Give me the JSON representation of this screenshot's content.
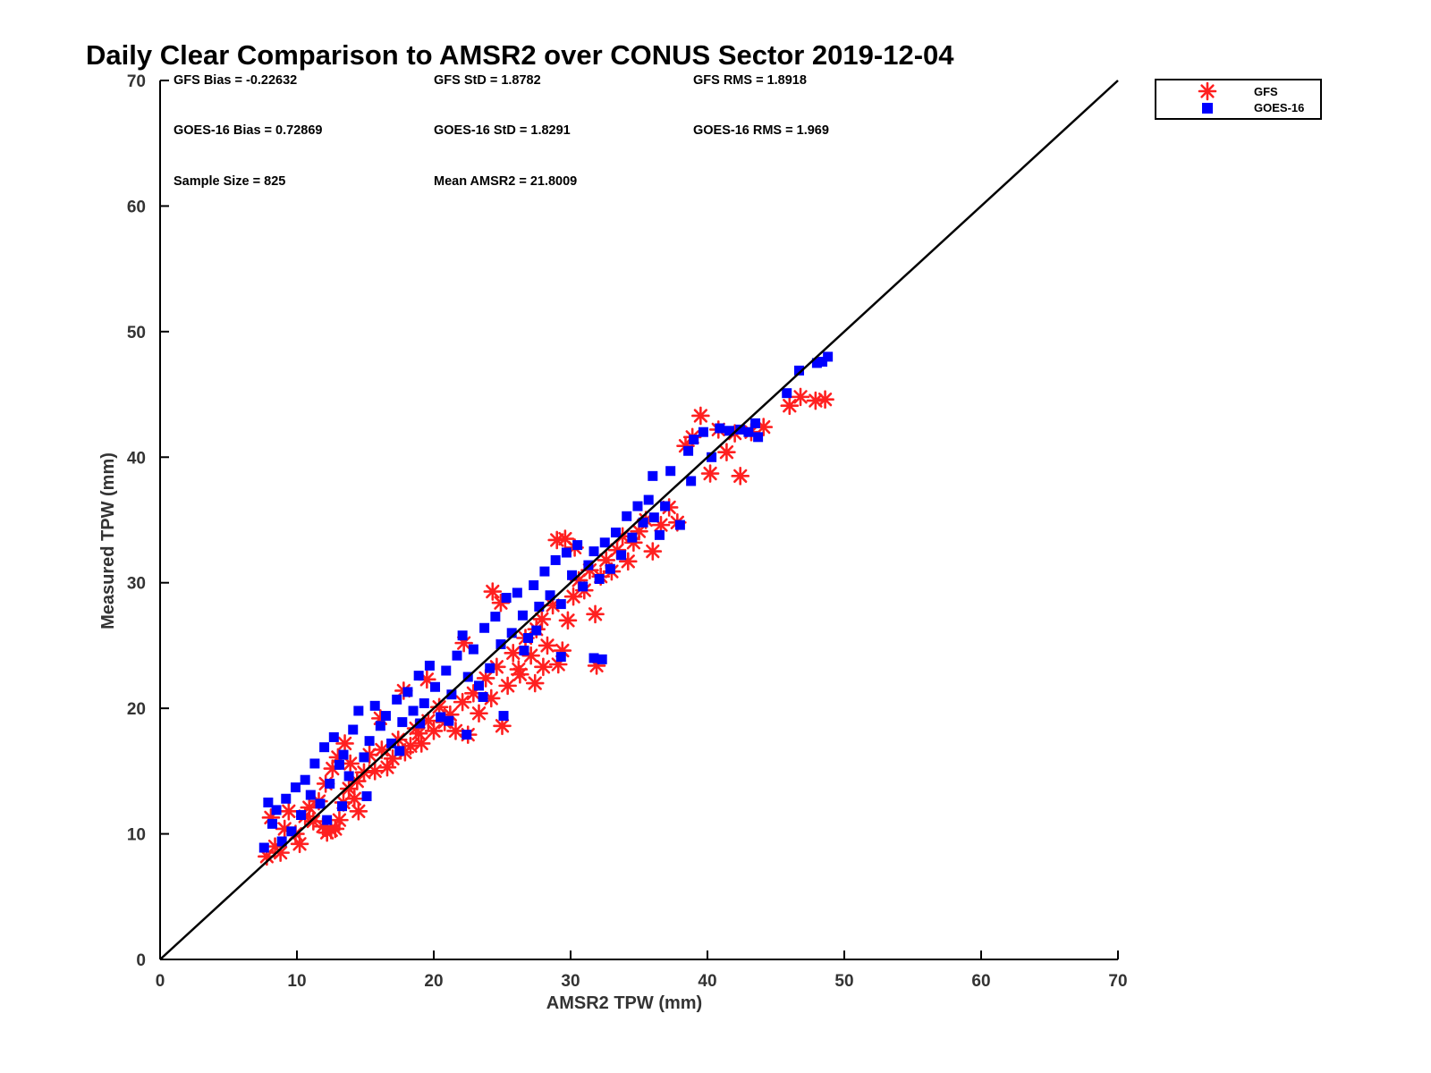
{
  "chart_data": {
    "type": "scatter",
    "title": "Daily Clear Comparison to AMSR2 over CONUS Sector 2019-12-04",
    "xlabel": "AMSR2 TPW (mm)",
    "ylabel": "Measured TPW (mm)",
    "xlim": [
      0,
      70
    ],
    "ylim": [
      0,
      70
    ],
    "xticks": [
      "0",
      "10",
      "20",
      "30",
      "40",
      "50",
      "60",
      "70"
    ],
    "yticks": [
      "0",
      "10",
      "20",
      "30",
      "40",
      "50",
      "60",
      "70"
    ],
    "grid": false,
    "legend_position": "outside-top-right",
    "reference_line": {
      "from": [
        0,
        0
      ],
      "to": [
        70,
        70
      ],
      "color": "#000000"
    },
    "stats": {
      "gfs_bias": "GFS Bias = -0.22632",
      "gfs_std": "GFS StD = 1.8782",
      "gfs_rms": "GFS RMS = 1.8918",
      "goes_bias": "GOES-16 Bias = 0.72869",
      "goes_std": "GOES-16 StD = 1.8291",
      "goes_rms": "GOES-16 RMS = 1.969",
      "sample_size": "Sample Size = 825",
      "mean_amsr2": "Mean AMSR2 = 21.8009"
    },
    "series": [
      {
        "name": "GFS",
        "marker": "asterisk",
        "color": "#ff2020",
        "points": [
          [
            7.8,
            8.2
          ],
          [
            8.1,
            11.3
          ],
          [
            8.4,
            9.0
          ],
          [
            8.8,
            8.5
          ],
          [
            9.1,
            10.4
          ],
          [
            9.4,
            11.8
          ],
          [
            9.9,
            10.0
          ],
          [
            10.2,
            9.2
          ],
          [
            10.6,
            11.4
          ],
          [
            10.9,
            12.1
          ],
          [
            11.2,
            11.0
          ],
          [
            11.6,
            12.6
          ],
          [
            11.9,
            10.6
          ],
          [
            12.2,
            10.1
          ],
          [
            12.5,
            10.3
          ],
          [
            12.8,
            10.4
          ],
          [
            13.1,
            11.1
          ],
          [
            13.4,
            12.5
          ],
          [
            13.8,
            13.6
          ],
          [
            14.2,
            12.8
          ],
          [
            14.5,
            11.8
          ],
          [
            12.1,
            14.0
          ],
          [
            12.6,
            15.2
          ],
          [
            13.0,
            16.1
          ],
          [
            13.5,
            17.2
          ],
          [
            13.9,
            15.6
          ],
          [
            14.4,
            14.2
          ],
          [
            14.9,
            14.9
          ],
          [
            15.3,
            16.3
          ],
          [
            15.7,
            15.0
          ],
          [
            16.2,
            16.7
          ],
          [
            16.6,
            15.3
          ],
          [
            17.0,
            16.0
          ],
          [
            17.4,
            17.5
          ],
          [
            17.9,
            16.5
          ],
          [
            18.3,
            17.0
          ],
          [
            18.7,
            18.4
          ],
          [
            19.1,
            17.2
          ],
          [
            19.6,
            19.0
          ],
          [
            20.0,
            18.2
          ],
          [
            20.4,
            20.1
          ],
          [
            20.8,
            18.9
          ],
          [
            21.2,
            19.5
          ],
          [
            21.6,
            18.2
          ],
          [
            22.1,
            20.5
          ],
          [
            22.5,
            17.9
          ],
          [
            22.9,
            21.2
          ],
          [
            23.3,
            19.6
          ],
          [
            23.8,
            22.4
          ],
          [
            24.2,
            20.8
          ],
          [
            24.6,
            23.3
          ],
          [
            25.0,
            18.6
          ],
          [
            25.4,
            21.8
          ],
          [
            25.8,
            24.4
          ],
          [
            26.2,
            23.1
          ],
          [
            26.7,
            25.6
          ],
          [
            27.1,
            24.2
          ],
          [
            27.5,
            26.3
          ],
          [
            27.9,
            27.1
          ],
          [
            28.3,
            25.0
          ],
          [
            28.7,
            28.2
          ],
          [
            29.1,
            23.5
          ],
          [
            29.4,
            24.6
          ],
          [
            29.8,
            27.0
          ],
          [
            30.2,
            28.9
          ],
          [
            30.6,
            30.2
          ],
          [
            31.0,
            29.4
          ],
          [
            31.4,
            31.0
          ],
          [
            31.8,
            27.5
          ],
          [
            32.2,
            30.5
          ],
          [
            32.6,
            31.8
          ],
          [
            33.0,
            30.9
          ],
          [
            33.4,
            32.6
          ],
          [
            33.8,
            33.7
          ],
          [
            34.2,
            31.7
          ],
          [
            34.6,
            33.2
          ],
          [
            35.0,
            34.1
          ],
          [
            35.5,
            35.0
          ],
          [
            36.0,
            32.5
          ],
          [
            36.6,
            34.6
          ],
          [
            37.2,
            36.0
          ],
          [
            37.8,
            34.8
          ],
          [
            38.4,
            40.9
          ],
          [
            38.9,
            41.6
          ],
          [
            39.5,
            43.3
          ],
          [
            40.2,
            38.7
          ],
          [
            40.8,
            42.2
          ],
          [
            41.4,
            40.4
          ],
          [
            42.0,
            41.9
          ],
          [
            42.4,
            38.5
          ],
          [
            43.2,
            42.0
          ],
          [
            44.1,
            42.4
          ],
          [
            46.0,
            44.1
          ],
          [
            46.8,
            44.8
          ],
          [
            47.9,
            44.5
          ],
          [
            48.6,
            44.6
          ],
          [
            29.0,
            33.4
          ],
          [
            29.6,
            33.5
          ],
          [
            30.3,
            32.8
          ],
          [
            31.9,
            23.4
          ],
          [
            24.3,
            29.3
          ],
          [
            24.9,
            28.4
          ],
          [
            17.8,
            21.4
          ],
          [
            16.1,
            19.2
          ],
          [
            18.9,
            18.0
          ],
          [
            26.3,
            22.7
          ],
          [
            27.4,
            22.0
          ],
          [
            28.0,
            23.3
          ],
          [
            22.2,
            25.2
          ],
          [
            19.5,
            22.3
          ]
        ]
      },
      {
        "name": "GOES-16",
        "marker": "square",
        "color": "#0000ff",
        "points": [
          [
            7.6,
            8.9
          ],
          [
            7.9,
            12.5
          ],
          [
            8.2,
            10.8
          ],
          [
            8.5,
            11.9
          ],
          [
            8.9,
            9.4
          ],
          [
            9.2,
            12.8
          ],
          [
            9.6,
            10.2
          ],
          [
            9.9,
            13.7
          ],
          [
            10.3,
            11.5
          ],
          [
            10.6,
            14.3
          ],
          [
            11.0,
            13.1
          ],
          [
            11.3,
            15.6
          ],
          [
            11.7,
            12.4
          ],
          [
            12.0,
            16.9
          ],
          [
            12.4,
            14.0
          ],
          [
            12.7,
            17.7
          ],
          [
            13.1,
            15.5
          ],
          [
            13.4,
            16.3
          ],
          [
            13.8,
            14.6
          ],
          [
            14.1,
            18.3
          ],
          [
            14.5,
            19.8
          ],
          [
            14.9,
            16.1
          ],
          [
            15.3,
            17.4
          ],
          [
            15.7,
            20.2
          ],
          [
            16.1,
            18.6
          ],
          [
            16.5,
            19.4
          ],
          [
            16.9,
            17.2
          ],
          [
            17.3,
            20.7
          ],
          [
            17.7,
            18.9
          ],
          [
            18.1,
            21.3
          ],
          [
            18.5,
            19.8
          ],
          [
            18.9,
            22.6
          ],
          [
            19.3,
            20.4
          ],
          [
            19.7,
            23.4
          ],
          [
            20.1,
            21.7
          ],
          [
            20.5,
            19.3
          ],
          [
            20.9,
            23.0
          ],
          [
            21.3,
            21.1
          ],
          [
            21.7,
            24.2
          ],
          [
            22.1,
            25.8
          ],
          [
            22.5,
            22.5
          ],
          [
            22.9,
            24.7
          ],
          [
            23.3,
            21.8
          ],
          [
            23.7,
            26.4
          ],
          [
            24.1,
            23.2
          ],
          [
            24.5,
            27.3
          ],
          [
            24.9,
            25.1
          ],
          [
            25.3,
            28.8
          ],
          [
            25.7,
            26.0
          ],
          [
            26.1,
            29.2
          ],
          [
            26.5,
            27.4
          ],
          [
            26.9,
            25.6
          ],
          [
            27.3,
            29.8
          ],
          [
            27.7,
            28.1
          ],
          [
            28.1,
            30.9
          ],
          [
            28.5,
            29.0
          ],
          [
            28.9,
            31.8
          ],
          [
            29.3,
            28.3
          ],
          [
            29.7,
            32.4
          ],
          [
            30.1,
            30.6
          ],
          [
            30.5,
            33.0
          ],
          [
            30.9,
            29.7
          ],
          [
            31.3,
            31.4
          ],
          [
            31.7,
            32.5
          ],
          [
            32.1,
            30.3
          ],
          [
            32.5,
            33.2
          ],
          [
            32.9,
            31.1
          ],
          [
            33.3,
            34.0
          ],
          [
            33.7,
            32.2
          ],
          [
            34.1,
            35.3
          ],
          [
            34.5,
            33.6
          ],
          [
            34.9,
            36.1
          ],
          [
            35.3,
            34.8
          ],
          [
            35.7,
            36.6
          ],
          [
            36.1,
            35.2
          ],
          [
            36.5,
            33.8
          ],
          [
            36.9,
            36.1
          ],
          [
            37.3,
            38.9
          ],
          [
            38.0,
            34.6
          ],
          [
            38.6,
            40.5
          ],
          [
            39.0,
            41.4
          ],
          [
            39.7,
            42.0
          ],
          [
            40.3,
            40.0
          ],
          [
            40.9,
            42.3
          ],
          [
            41.6,
            42.1
          ],
          [
            42.4,
            42.2
          ],
          [
            43.0,
            42.0
          ],
          [
            43.5,
            42.7
          ],
          [
            43.7,
            41.6
          ],
          [
            45.8,
            45.1
          ],
          [
            46.7,
            46.9
          ],
          [
            48.0,
            47.5
          ],
          [
            48.4,
            47.6
          ],
          [
            48.8,
            48.0
          ],
          [
            38.8,
            38.1
          ],
          [
            36.0,
            38.5
          ],
          [
            31.7,
            24.0
          ],
          [
            32.3,
            23.9
          ],
          [
            25.1,
            19.4
          ],
          [
            29.3,
            24.1
          ],
          [
            22.4,
            17.9
          ],
          [
            21.1,
            19.0
          ],
          [
            15.1,
            13.0
          ],
          [
            13.3,
            12.2
          ],
          [
            12.2,
            11.1
          ],
          [
            27.5,
            26.2
          ],
          [
            26.6,
            24.6
          ],
          [
            23.6,
            20.9
          ],
          [
            19.0,
            18.8
          ],
          [
            17.5,
            16.6
          ]
        ]
      }
    ]
  }
}
